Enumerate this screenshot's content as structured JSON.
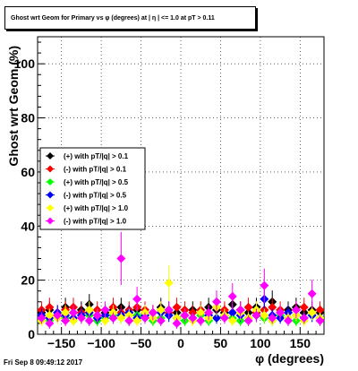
{
  "chart_data": {
    "type": "scatter",
    "title": "Ghost wrt Geom for Primary vs φ (degrees) at | η | <= 1.0 at pT > 0.11",
    "xlabel": "φ (degrees)",
    "ylabel": "Ghost wrt Geom (%)",
    "xlim": [
      -180,
      180
    ],
    "ylim": [
      0,
      110
    ],
    "x_ticks": [
      -150,
      -100,
      -50,
      0,
      50,
      100,
      150
    ],
    "x_tick_labels": [
      "−150",
      "−100",
      "−50",
      "0",
      "50",
      "100",
      "150"
    ],
    "y_ticks": [
      0,
      20,
      40,
      60,
      80,
      100
    ],
    "y_tick_labels": [
      "0",
      "20",
      "40",
      "60",
      "80",
      "100"
    ],
    "grid": true,
    "legend_placement": "left-middle",
    "series": [
      {
        "name": "(+) with pT/|q| > 0.1",
        "color": "#000000",
        "x": [
          -175,
          -165,
          -155,
          -145,
          -135,
          -125,
          -115,
          -105,
          -95,
          -85,
          -75,
          -65,
          -55,
          -45,
          -35,
          -25,
          -15,
          -5,
          5,
          15,
          25,
          35,
          45,
          55,
          65,
          75,
          85,
          95,
          105,
          115,
          125,
          135,
          145,
          155,
          165,
          175
        ],
        "y": [
          8,
          9,
          7,
          10,
          8,
          9,
          11,
          7,
          8,
          9,
          10,
          8,
          9,
          7,
          8,
          10,
          9,
          8,
          7,
          9,
          8,
          10,
          9,
          8,
          11,
          9,
          8,
          10,
          9,
          12,
          8,
          9,
          10,
          8,
          9,
          8
        ]
      },
      {
        "name": "(-) with pT/|q| > 0.1",
        "color": "#ff0000",
        "x": [
          -175,
          -165,
          -155,
          -145,
          -135,
          -125,
          -115,
          -105,
          -95,
          -85,
          -75,
          -65,
          -55,
          -45,
          -35,
          -25,
          -15,
          -5,
          5,
          15,
          25,
          35,
          45,
          55,
          65,
          75,
          85,
          95,
          105,
          115,
          125,
          135,
          145,
          155,
          165,
          175
        ],
        "y": [
          9,
          10,
          8,
          9,
          10,
          8,
          9,
          9,
          7,
          10,
          8,
          9,
          10,
          9,
          8,
          9,
          8,
          10,
          9,
          8,
          9,
          8,
          10,
          9,
          8,
          9,
          10,
          8,
          9,
          10,
          9,
          8,
          9,
          10,
          8,
          9
        ]
      },
      {
        "name": "(+) with pT/|q| > 0.5",
        "color": "#00ff00",
        "x": [
          -175,
          -165,
          -155,
          -145,
          -135,
          -125,
          -115,
          -105,
          -95,
          -85,
          -75,
          -65,
          -55,
          -45,
          -35,
          -25,
          -15,
          -5,
          5,
          15,
          25,
          35,
          45,
          55,
          65,
          75,
          85,
          95,
          105,
          115,
          125,
          135,
          145,
          155,
          165,
          175
        ],
        "y": [
          6,
          5,
          7,
          6,
          5,
          6,
          7,
          5,
          6,
          7,
          6,
          5,
          7,
          6,
          5,
          6,
          7,
          6,
          5,
          6,
          7,
          5,
          6,
          7,
          6,
          5,
          6,
          7,
          6,
          5,
          7,
          6,
          5,
          6,
          7,
          6
        ]
      },
      {
        "name": "(-) with pT/|q| > 0.5",
        "color": "#0000ff",
        "x": [
          -175,
          -165,
          -155,
          -145,
          -135,
          -125,
          -115,
          -105,
          -95,
          -85,
          -75,
          -65,
          -55,
          -45,
          -35,
          -25,
          -15,
          -5,
          5,
          15,
          25,
          35,
          45,
          55,
          65,
          75,
          85,
          95,
          105,
          115,
          125,
          135,
          145,
          155,
          165,
          175
        ],
        "y": [
          7,
          6,
          8,
          7,
          6,
          7,
          8,
          6,
          7,
          6,
          7,
          8,
          6,
          7,
          6,
          8,
          7,
          6,
          7,
          6,
          8,
          7,
          6,
          7,
          8,
          7,
          6,
          7,
          13,
          7,
          6,
          8,
          7,
          6,
          7,
          6
        ]
      },
      {
        "name": "(+) with pT/|q| > 1.0",
        "color": "#ffff00",
        "x": [
          -175,
          -165,
          -155,
          -145,
          -135,
          -125,
          -115,
          -105,
          -95,
          -85,
          -75,
          -65,
          -55,
          -45,
          -35,
          -25,
          -15,
          -5,
          5,
          15,
          25,
          35,
          45,
          55,
          65,
          75,
          85,
          95,
          105,
          115,
          125,
          135,
          145,
          155,
          165,
          175
        ],
        "y": [
          5,
          7,
          6,
          8,
          5,
          6,
          9,
          7,
          5,
          8,
          6,
          7,
          5,
          8,
          6,
          9,
          19,
          6,
          7,
          5,
          8,
          6,
          10,
          7,
          5,
          8,
          6,
          9,
          7,
          5,
          8,
          6,
          7,
          5,
          8,
          6
        ]
      },
      {
        "name": "(-) with pT/|q| > 1.0",
        "color": "#ff00ff",
        "x": [
          -175,
          -165,
          -155,
          -145,
          -135,
          -125,
          -115,
          -105,
          -95,
          -85,
          -75,
          -65,
          -55,
          -45,
          -35,
          -25,
          -15,
          -5,
          5,
          15,
          25,
          35,
          45,
          55,
          65,
          75,
          85,
          95,
          105,
          115,
          125,
          135,
          145,
          155,
          165,
          175
        ],
        "y": [
          6,
          4,
          7,
          5,
          8,
          6,
          5,
          7,
          9,
          6,
          28,
          5,
          13,
          6,
          8,
          5,
          9,
          4,
          7,
          6,
          5,
          8,
          12,
          6,
          14,
          9,
          5,
          7,
          18,
          6,
          8,
          5,
          9,
          6,
          15,
          5
        ]
      }
    ]
  },
  "footer": {
    "timestamp": "Fri Sep  8 09:49:12 2017"
  }
}
